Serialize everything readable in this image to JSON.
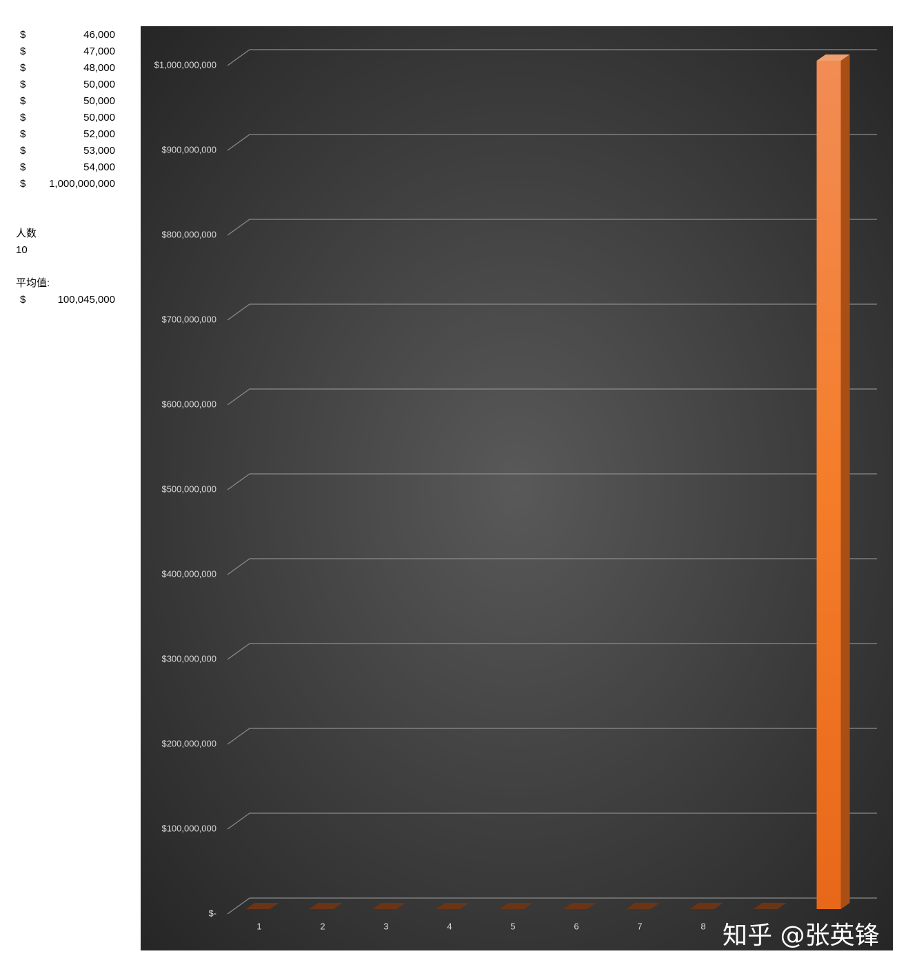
{
  "sheet": {
    "salaries": [
      [
        "$",
        "46,000"
      ],
      [
        "$",
        "47,000"
      ],
      [
        "$",
        "48,000"
      ],
      [
        "$",
        "50,000"
      ],
      [
        "$",
        "50,000"
      ],
      [
        "$",
        "50,000"
      ],
      [
        "$",
        "52,000"
      ],
      [
        "$",
        "53,000"
      ],
      [
        "$",
        "54,000"
      ],
      [
        "$",
        "1,000,000,000"
      ]
    ],
    "count_label": "人数",
    "count": 10,
    "average_label": "平均值:",
    "average": [
      "$",
      "100,045,000"
    ]
  },
  "watermark": "知乎 @张英锋",
  "chart_data": {
    "type": "bar3d",
    "categories": [
      "1",
      "2",
      "3",
      "4",
      "5",
      "6",
      "7",
      "8",
      null,
      null
    ],
    "values": [
      46000,
      47000,
      48000,
      50000,
      50000,
      50000,
      52000,
      53000,
      54000,
      1000000000
    ],
    "color": "#ed7d31",
    "ylim": [
      0,
      1000000000
    ],
    "yticks": [
      {
        "value": 0,
        "label": "$-"
      },
      {
        "value": 100000000,
        "label": "$100,000,000"
      },
      {
        "value": 200000000,
        "label": "$200,000,000"
      },
      {
        "value": 300000000,
        "label": "$300,000,000"
      },
      {
        "value": 400000000,
        "label": "$400,000,000"
      },
      {
        "value": 500000000,
        "label": "$500,000,000"
      },
      {
        "value": 600000000,
        "label": "$600,000,000"
      },
      {
        "value": 700000000,
        "label": "$700,000,000"
      },
      {
        "value": 800000000,
        "label": "$800,000,000"
      },
      {
        "value": 900000000,
        "label": "$900,000,000"
      },
      {
        "value": 1000000000,
        "label": "$1,000,000,000"
      }
    ],
    "grid": true
  }
}
